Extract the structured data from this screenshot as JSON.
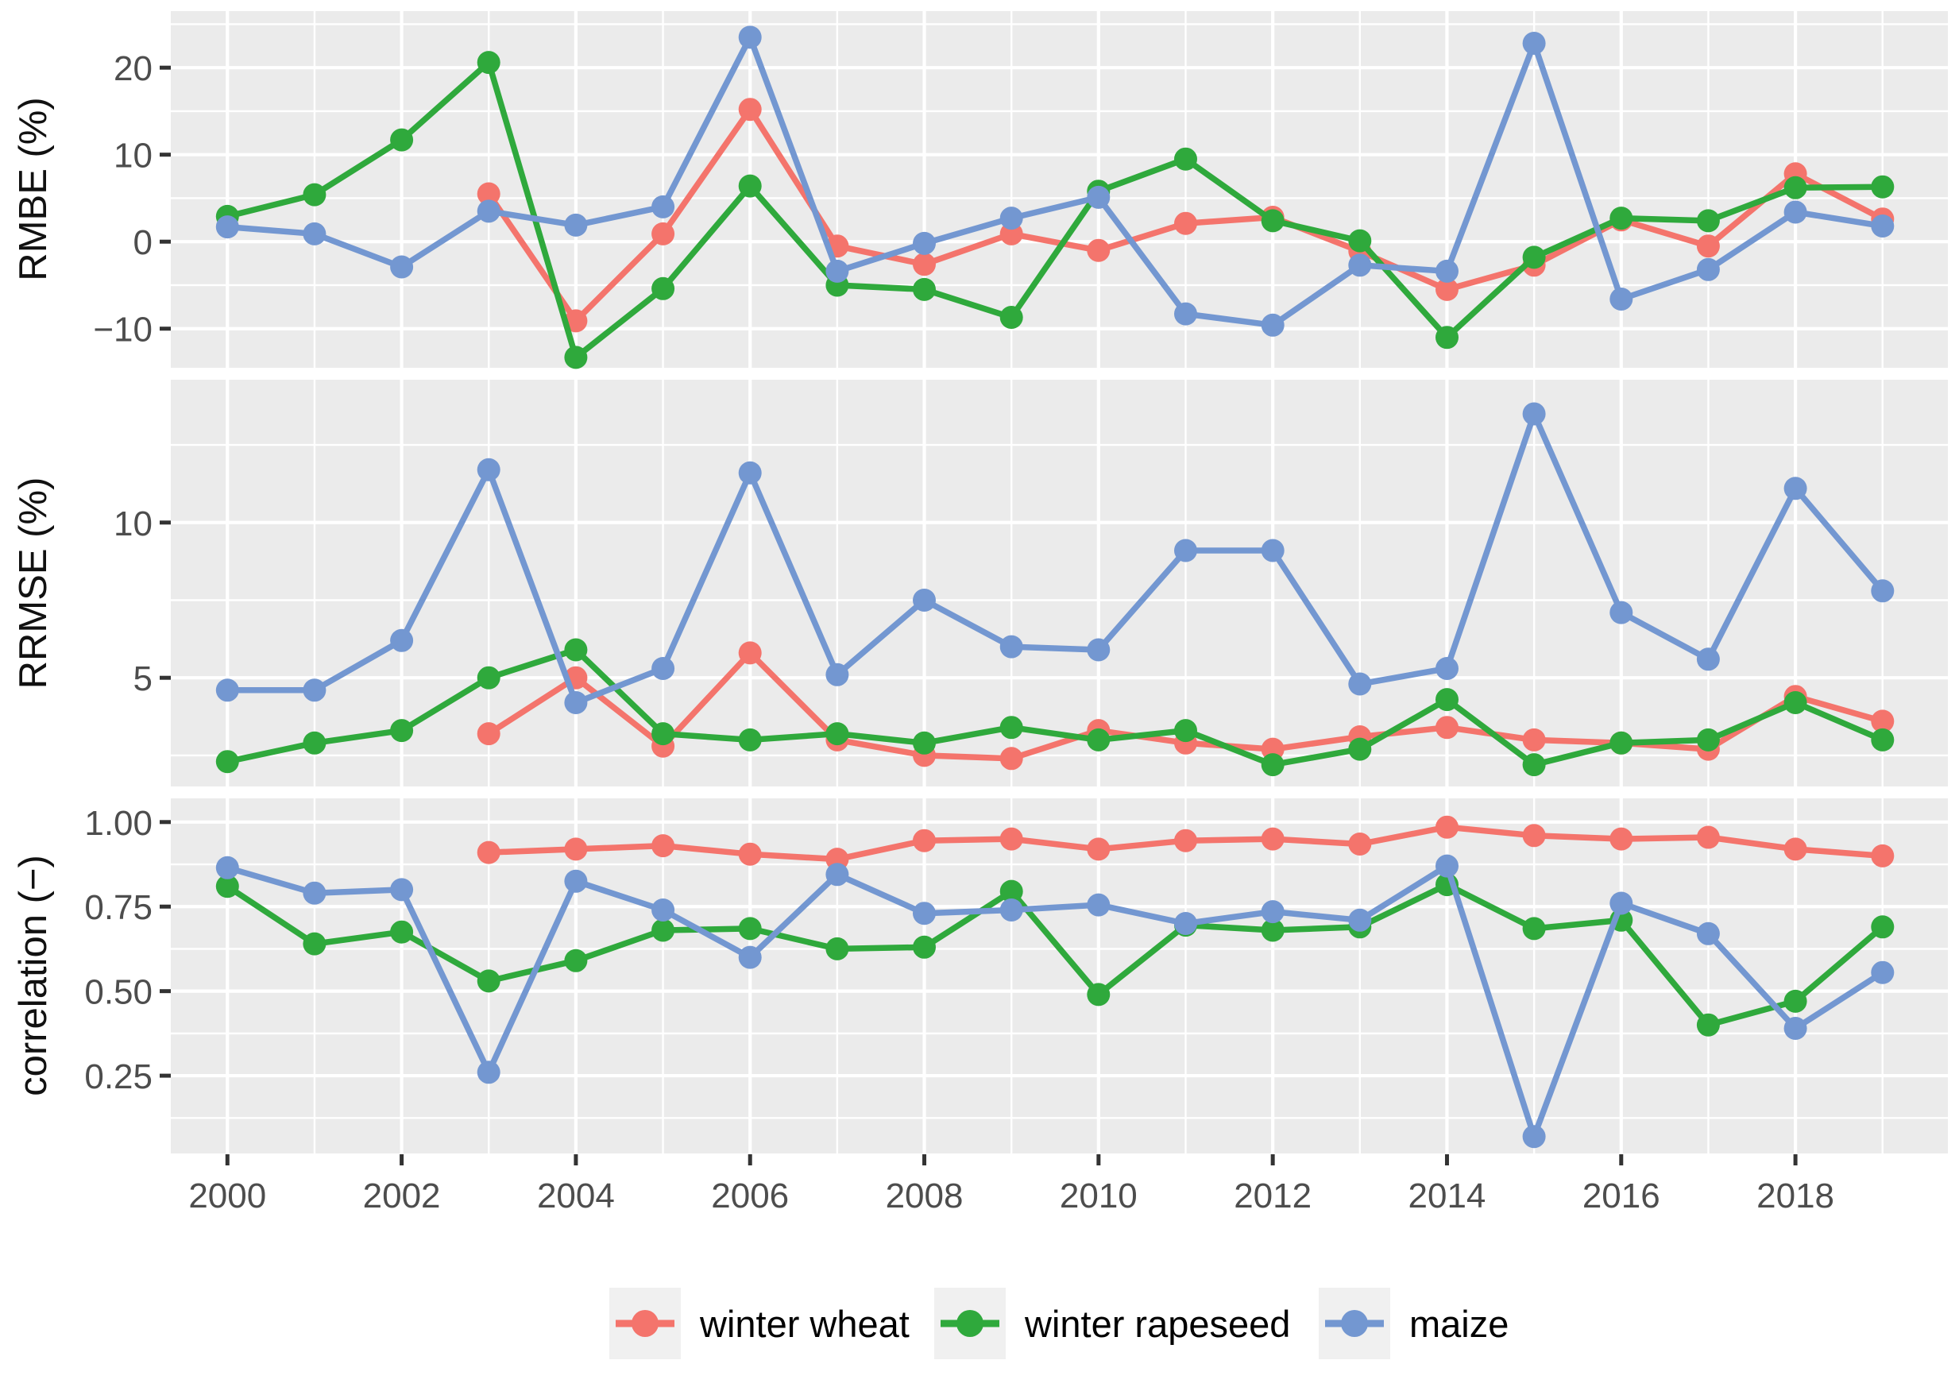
{
  "figure": {
    "kind": "faceted line chart, 3 stacked panels sharing one x axis (years)",
    "background": "#ffffff",
    "panel_background": "#ebebeb",
    "gridline_color": "#ffffff",
    "tick_color": "#333333",
    "tick_label_color": "#4d4d4d"
  },
  "xaxis": {
    "domain": [
      1999.35,
      2019.75
    ],
    "major_ticks": [
      2000,
      2002,
      2004,
      2006,
      2008,
      2010,
      2012,
      2014,
      2016,
      2018
    ],
    "major_tick_labels": [
      "2000",
      "2002",
      "2004",
      "2006",
      "2008",
      "2010",
      "2012",
      "2014",
      "2016",
      "2018"
    ],
    "minor_ticks": [
      2001,
      2003,
      2005,
      2007,
      2009,
      2011,
      2013,
      2015,
      2017,
      2019
    ]
  },
  "legend": {
    "position": "bottom-center",
    "items": [
      {
        "label": "winter wheat",
        "color": "#f4746c"
      },
      {
        "label": "winter rapeseed",
        "color": "#2fa93c"
      },
      {
        "label": "maize",
        "color": "#7397d1"
      }
    ]
  },
  "chart_data": [
    {
      "type": "line",
      "panel": "top",
      "ylabel": "RMBE (%)",
      "ydomain": [
        -14.5,
        26.5
      ],
      "yticks": [
        20,
        10,
        0,
        -10
      ],
      "ytick_labels": [
        "20",
        "10",
        "0",
        "−10"
      ],
      "yminor": [
        25,
        15,
        5,
        -5
      ],
      "x": [
        2000,
        2001,
        2002,
        2003,
        2004,
        2005,
        2006,
        2007,
        2008,
        2009,
        2010,
        2011,
        2012,
        2013,
        2014,
        2015,
        2016,
        2017,
        2018,
        2019
      ],
      "series": [
        {
          "name": "winter wheat",
          "color": "#f4746c",
          "values": [
            null,
            null,
            null,
            5.5,
            -9.1,
            0.9,
            15.2,
            -0.5,
            -2.6,
            0.9,
            -1.0,
            2.1,
            2.8,
            -1.1,
            -5.5,
            -2.7,
            2.5,
            -0.5,
            7.8,
            2.6
          ]
        },
        {
          "name": "winter rapeseed",
          "color": "#2fa93c",
          "values": [
            2.9,
            5.4,
            11.7,
            20.6,
            -13.3,
            -5.4,
            6.4,
            -5.0,
            -5.5,
            -8.7,
            5.8,
            9.5,
            2.4,
            0.1,
            -11.0,
            -1.8,
            2.7,
            2.4,
            6.2,
            6.3
          ]
        },
        {
          "name": "maize",
          "color": "#7397d1",
          "values": [
            1.7,
            0.9,
            -2.9,
            3.5,
            1.9,
            4.0,
            23.5,
            -3.4,
            -0.2,
            2.7,
            5.1,
            -8.3,
            -9.6,
            -2.7,
            -3.4,
            22.8,
            -6.6,
            -3.2,
            3.4,
            1.8
          ]
        }
      ]
    },
    {
      "type": "line",
      "panel": "middle",
      "ylabel": "RRMSE (%)",
      "ydomain": [
        1.5,
        14.6
      ],
      "yticks": [
        10,
        5
      ],
      "ytick_labels": [
        "10",
        "5"
      ],
      "yminor": [
        12.5,
        7.5,
        2.5
      ],
      "x": [
        2000,
        2001,
        2002,
        2003,
        2004,
        2005,
        2006,
        2007,
        2008,
        2009,
        2010,
        2011,
        2012,
        2013,
        2014,
        2015,
        2016,
        2017,
        2018,
        2019
      ],
      "series": [
        {
          "name": "winter wheat",
          "color": "#f4746c",
          "values": [
            null,
            null,
            null,
            3.2,
            5.0,
            2.8,
            5.8,
            3.0,
            2.5,
            2.4,
            3.3,
            2.9,
            2.7,
            3.1,
            3.4,
            3.0,
            2.9,
            2.7,
            4.4,
            3.6
          ]
        },
        {
          "name": "winter rapeseed",
          "color": "#2fa93c",
          "values": [
            2.3,
            2.9,
            3.3,
            5.0,
            5.9,
            3.2,
            3.0,
            3.2,
            2.9,
            3.4,
            3.0,
            3.3,
            2.2,
            2.7,
            4.3,
            2.2,
            2.9,
            3.0,
            4.2,
            3.0
          ]
        },
        {
          "name": "maize",
          "color": "#7397d1",
          "values": [
            4.6,
            4.6,
            6.2,
            11.7,
            4.2,
            5.3,
            11.6,
            5.1,
            7.5,
            6.0,
            5.9,
            9.1,
            9.1,
            4.8,
            5.3,
            13.5,
            7.1,
            5.6,
            11.1,
            7.8
          ]
        }
      ]
    },
    {
      "type": "line",
      "panel": "bottom",
      "ylabel": "correlation (−)",
      "ydomain": [
        0.02,
        1.07
      ],
      "yticks": [
        1.0,
        0.75,
        0.5,
        0.25
      ],
      "ytick_labels": [
        "1.00",
        "0.75",
        "0.50",
        "0.25"
      ],
      "yminor": [
        0.875,
        0.625,
        0.375,
        0.125
      ],
      "x": [
        2000,
        2001,
        2002,
        2003,
        2004,
        2005,
        2006,
        2007,
        2008,
        2009,
        2010,
        2011,
        2012,
        2013,
        2014,
        2015,
        2016,
        2017,
        2018,
        2019
      ],
      "series": [
        {
          "name": "winter wheat",
          "color": "#f4746c",
          "values": [
            null,
            null,
            null,
            0.91,
            0.92,
            0.93,
            0.905,
            0.89,
            0.945,
            0.95,
            0.92,
            0.945,
            0.95,
            0.935,
            0.985,
            0.96,
            0.95,
            0.955,
            0.92,
            0.9
          ]
        },
        {
          "name": "winter rapeseed",
          "color": "#2fa93c",
          "values": [
            0.81,
            0.64,
            0.675,
            0.53,
            0.59,
            0.68,
            0.685,
            0.625,
            0.63,
            0.795,
            0.49,
            0.695,
            0.68,
            0.69,
            0.815,
            0.685,
            0.71,
            0.4,
            0.47,
            0.69
          ]
        },
        {
          "name": "maize",
          "color": "#7397d1",
          "values": [
            0.865,
            0.79,
            0.8,
            0.26,
            0.825,
            0.74,
            0.6,
            0.845,
            0.73,
            0.74,
            0.755,
            0.7,
            0.735,
            0.71,
            0.87,
            0.07,
            0.76,
            0.67,
            0.39,
            0.555
          ]
        }
      ]
    }
  ]
}
